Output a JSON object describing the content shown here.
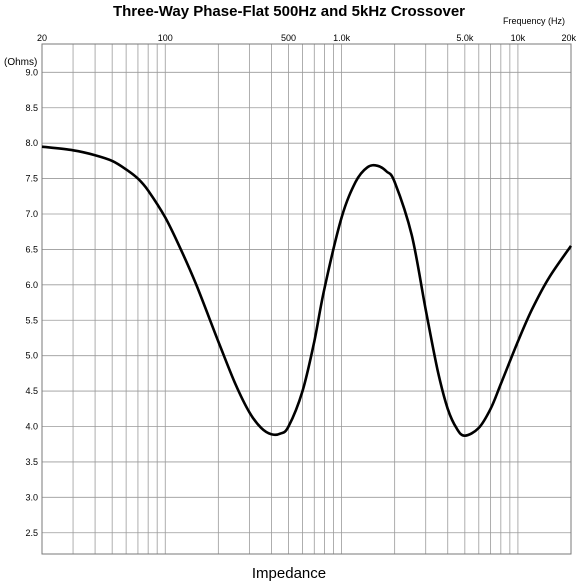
{
  "chart_data": {
    "type": "line",
    "title": "Three-Way Phase-Flat 500Hz and 5kHz Crossover",
    "xlabel": "Impedance",
    "x_axis_label": "Frequency   (Hz)",
    "ylabel": "(Ohms)",
    "x_scale": "log",
    "xlim": [
      20,
      20000
    ],
    "ylim": [
      2.2,
      9.4
    ],
    "grid": true,
    "x_tick_labels": [
      {
        "value": 20,
        "label": "20"
      },
      {
        "value": 100,
        "label": "100"
      },
      {
        "value": 500,
        "label": "500"
      },
      {
        "value": 1000,
        "label": "1.0k"
      },
      {
        "value": 5000,
        "label": "5.0k"
      },
      {
        "value": 10000,
        "label": "10k"
      },
      {
        "value": 20000,
        "label": "20k"
      }
    ],
    "y_ticks": [
      2.5,
      3.0,
      3.5,
      4.0,
      4.5,
      5.0,
      5.5,
      6.0,
      6.5,
      7.0,
      7.5,
      8.0,
      8.5,
      9.0
    ],
    "y_tick_labels": [
      "2.5",
      "3.0",
      "3.5",
      "4.0",
      "4.5",
      "5.0",
      "5.5",
      "6.0",
      "6.5",
      "7.0",
      "7.5",
      "8.0",
      "8.5",
      "9.0"
    ],
    "series": [
      {
        "color": "#000000",
        "x": [
          20,
          30,
          40,
          50,
          60,
          70,
          80,
          100,
          120,
          150,
          200,
          250,
          300,
          350,
          400,
          450,
          500,
          600,
          700,
          800,
          1000,
          1200,
          1400,
          1600,
          1800,
          2000,
          2500,
          3000,
          3500,
          4000,
          4500,
          5000,
          6000,
          7000,
          8000,
          10000,
          12000,
          15000,
          20000
        ],
        "y": [
          7.95,
          7.9,
          7.83,
          7.75,
          7.63,
          7.5,
          7.33,
          6.95,
          6.55,
          6.0,
          5.2,
          4.6,
          4.2,
          3.98,
          3.89,
          3.9,
          4.0,
          4.5,
          5.2,
          5.95,
          6.95,
          7.45,
          7.66,
          7.68,
          7.6,
          7.45,
          6.7,
          5.65,
          4.8,
          4.25,
          3.97,
          3.87,
          3.98,
          4.25,
          4.6,
          5.2,
          5.65,
          6.1,
          6.55
        ]
      }
    ]
  }
}
